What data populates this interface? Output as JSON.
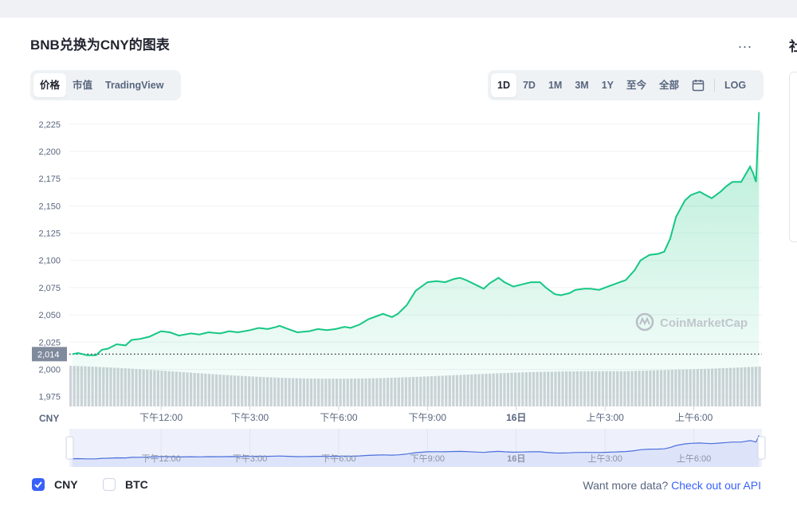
{
  "title": "BNB兑换为CNY的图表",
  "more_label": "...",
  "right_edge_glyph": "社",
  "view_tabs": [
    {
      "label": "价格",
      "active": true
    },
    {
      "label": "市值",
      "active": false
    },
    {
      "label": "TradingView",
      "active": false
    }
  ],
  "range_tabs": [
    {
      "label": "1D",
      "active": true
    },
    {
      "label": "7D",
      "active": false
    },
    {
      "label": "1M",
      "active": false
    },
    {
      "label": "3M",
      "active": false
    },
    {
      "label": "1Y",
      "active": false
    },
    {
      "label": "至今",
      "active": false
    },
    {
      "label": "全部",
      "active": false
    }
  ],
  "calendar_icon": "calendar-icon",
  "log_label": "LOG",
  "chart_data": {
    "type": "area",
    "currency_label": "CNY",
    "watermark": "CoinMarketCap",
    "y_ticks": [
      1975,
      2000,
      2025,
      2050,
      2075,
      2100,
      2125,
      2150,
      2175,
      2200,
      2225
    ],
    "y_tick_labels": [
      "1,975",
      "2,000",
      "2,025",
      "2,050",
      "2,075",
      "2,100",
      "2,125",
      "2,150",
      "2,175",
      "2,200",
      "2,225"
    ],
    "ylim": [
      1966,
      2238
    ],
    "reference_value": 2014,
    "reference_label": "2,014",
    "x_labels": [
      "下午12:00",
      "下午3:00",
      "下午6:00",
      "下午9:00",
      "16日",
      "上午3:00",
      "上午6:00"
    ],
    "x_label_hours": [
      3,
      6,
      9,
      12,
      15,
      18,
      21
    ],
    "x_range_hours": [
      -0.1,
      23.3
    ],
    "x": [
      0,
      0.2,
      0.5,
      0.8,
      1,
      1.2,
      1.5,
      1.8,
      2,
      2.3,
      2.6,
      3,
      3.3,
      3.6,
      4,
      4.3,
      4.6,
      5,
      5.3,
      5.6,
      6,
      6.3,
      6.6,
      6.9,
      7,
      7.3,
      7.6,
      8,
      8.3,
      8.6,
      8.9,
      9.2,
      9.4,
      9.7,
      10,
      10.3,
      10.5,
      10.8,
      11,
      11.3,
      11.6,
      12,
      12.3,
      12.6,
      12.9,
      13.1,
      13.3,
      13.6,
      13.9,
      14.1,
      14.4,
      14.6,
      14.9,
      15.2,
      15.5,
      15.8,
      16,
      16.3,
      16.5,
      16.8,
      17,
      17.3,
      17.5,
      17.8,
      18,
      18.3,
      18.5,
      18.7,
      19,
      19.2,
      19.5,
      19.8,
      20,
      20.2,
      20.4,
      20.7,
      20.9,
      21.2,
      21.4,
      21.6,
      21.9,
      22.1,
      22.3,
      22.6,
      22.9,
      23,
      23.1,
      23.2
    ],
    "y": [
      2014,
      2015,
      2013,
      2013,
      2018,
      2019,
      2023,
      2022,
      2027,
      2028,
      2030,
      2035,
      2034,
      2031,
      2033,
      2032,
      2034,
      2033,
      2035,
      2034,
      2036,
      2038,
      2037,
      2039,
      2040,
      2037,
      2034,
      2035,
      2037,
      2036,
      2037,
      2039,
      2038,
      2041,
      2046,
      2049,
      2051,
      2048,
      2051,
      2059,
      2072,
      2080,
      2081,
      2080,
      2083,
      2084,
      2082,
      2078,
      2074,
      2079,
      2084,
      2080,
      2076,
      2078,
      2080,
      2080,
      2075,
      2069,
      2068,
      2070,
      2073,
      2074,
      2074,
      2073,
      2075,
      2078,
      2080,
      2082,
      2091,
      2100,
      2105,
      2106,
      2108,
      2120,
      2140,
      2155,
      2160,
      2163,
      2160,
      2157,
      2163,
      2168,
      2172,
      2172,
      2186,
      2180,
      2172,
      2236
    ],
    "volume_note": "bars"
  },
  "navigator": {
    "x_labels": [
      "下午12:00",
      "下午3:00",
      "下午6:00",
      "下午9:00",
      "16日",
      "上午3:00",
      "上午6:00"
    ]
  },
  "footer": {
    "cny_label": "CNY",
    "cny_checked": true,
    "btc_label": "BTC",
    "btc_checked": false,
    "api_prefix": "Want more data?",
    "api_link": "Check out our API"
  },
  "colors": {
    "line": "#16c784",
    "accent": "#3861fb",
    "nav_line": "#4c6fdc",
    "volume": "#cfd3d9"
  }
}
